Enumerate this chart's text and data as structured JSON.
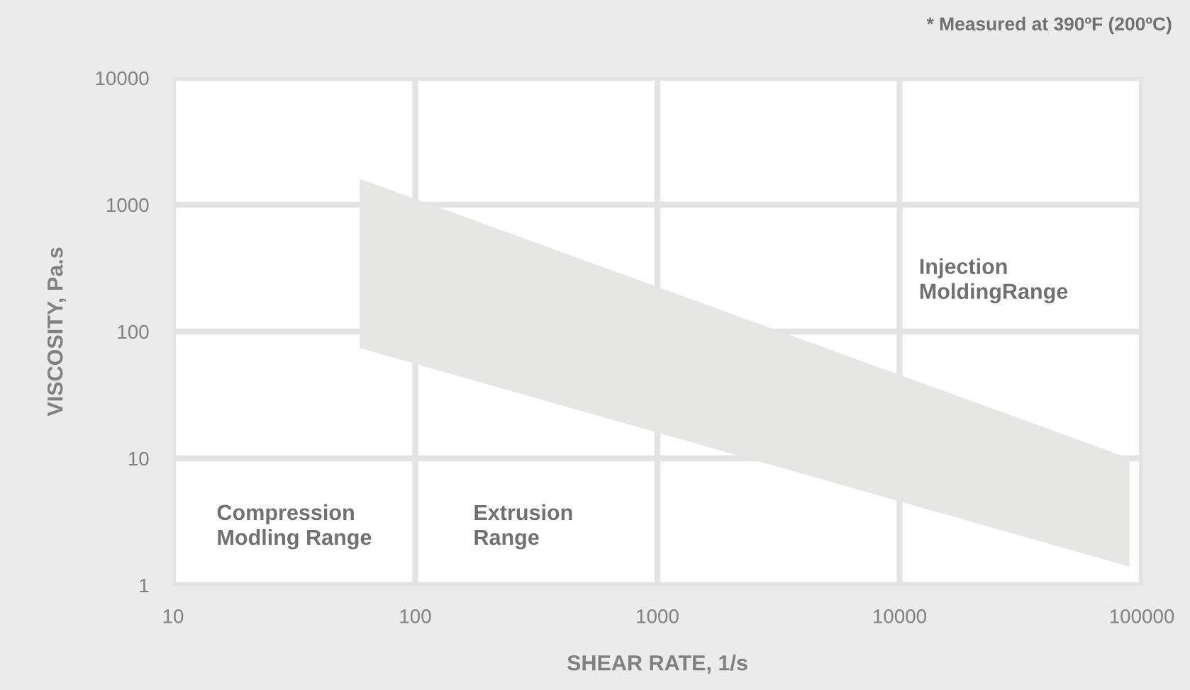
{
  "chart_data": {
    "type": "area",
    "xlabel": "SHEAR RATE, 1/s",
    "ylabel": "VISCOSITY, Pa.s",
    "log": "xy",
    "xlim": [
      10,
      100000
    ],
    "xticks": [
      10,
      100,
      1000,
      10000,
      100000
    ],
    "ylim": [
      1,
      10000
    ],
    "yticks": [
      1,
      10,
      100,
      1000,
      10000
    ],
    "grid": true,
    "series": [
      {
        "color": "#e6e7e5",
        "x": [
          59,
          89000
        ],
        "values": [
          null,
          null
        ],
        "lower": [
          74,
          1.4
        ],
        "upper": [
          1600,
          10
        ]
      }
    ],
    "annotations": [
      "* Measured at 390ºF (200ºC)",
      "Compression\nModling Range",
      "Extrusion\nRange",
      "Injection\nMoldingRange"
    ]
  }
}
